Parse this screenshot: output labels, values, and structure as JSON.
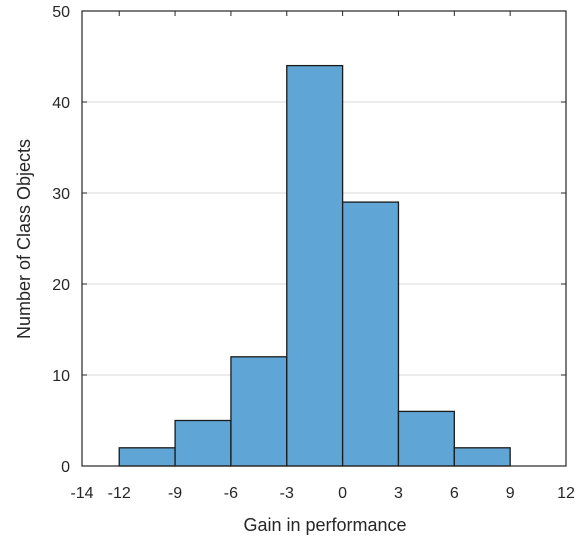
{
  "chart_data": {
    "type": "bar",
    "subtype": "histogram",
    "xlabel": "Gain in performance",
    "ylabel": "Number of Class Objects",
    "xlim": [
      -14,
      12
    ],
    "ylim": [
      0,
      50
    ],
    "x_ticks": [
      -14,
      -12,
      -9,
      -6,
      -3,
      0,
      3,
      6,
      9,
      12
    ],
    "y_ticks": [
      0,
      10,
      20,
      30,
      40,
      50
    ],
    "bin_edges": [
      -12,
      -9,
      -6,
      -3,
      0,
      3,
      6,
      9
    ],
    "values": [
      2,
      5,
      12,
      44,
      29,
      6,
      2
    ],
    "grid": "horizontal",
    "colors": {
      "bar_fill": "#5fa5d5",
      "bar_edge": "#1a1a1a",
      "grid": "#d9d9d9",
      "axis": "#262626"
    }
  }
}
